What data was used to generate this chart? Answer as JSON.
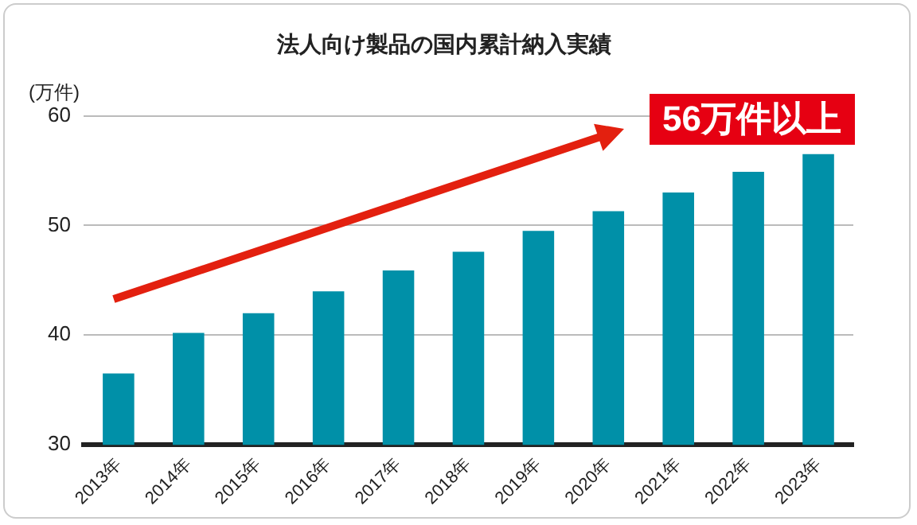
{
  "chart_data": {
    "type": "bar",
    "title": "法人向け製品の国内累計納入実績",
    "ylabel": "(万件)",
    "categories": [
      "2013年",
      "2014年",
      "2015年",
      "2016年",
      "2017年",
      "2018年",
      "2019年",
      "2020年",
      "2021年",
      "2022年",
      "2023年"
    ],
    "values": [
      36.5,
      40.2,
      42.0,
      44.0,
      45.9,
      47.6,
      49.5,
      51.3,
      53.0,
      54.9,
      56.5
    ],
    "color": "#0090a8",
    "ylim": [
      30,
      60
    ],
    "yticks": [
      30,
      40,
      50,
      60
    ],
    "grid": "y",
    "legend": false,
    "annotations": [
      "56万件以上"
    ]
  }
}
